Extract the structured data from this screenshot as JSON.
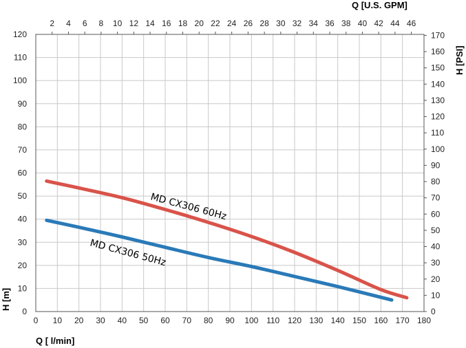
{
  "chart_data": {
    "type": "line",
    "axes": {
      "bottom": {
        "label": "Q [ l/min]",
        "min": 0,
        "max": 180,
        "step": 10
      },
      "left": {
        "label": "H [m]",
        "min": 0,
        "max": 120,
        "step": 10
      },
      "top": {
        "label": "Q [U.S. GPM]",
        "min": 0,
        "max": 47.55,
        "ticks": [
          2,
          4,
          6,
          8,
          10,
          12,
          14,
          16,
          18,
          20,
          22,
          24,
          26,
          28,
          30,
          32,
          34,
          36,
          38,
          40,
          42,
          44,
          46
        ]
      },
      "right": {
        "label": "H [PSI]",
        "min": 0,
        "max": 170.6,
        "ticks": [
          0,
          10,
          20,
          30,
          40,
          50,
          60,
          70,
          80,
          90,
          100,
          110,
          120,
          130,
          140,
          150,
          160,
          170
        ]
      }
    },
    "grid": "vertical and horizontal",
    "series": [
      {
        "name": "MD CX306 60Hz",
        "color": "#d9534a",
        "x": [
          5,
          20,
          40,
          60,
          80,
          100,
          120,
          140,
          160,
          172
        ],
        "y": [
          56.5,
          53.5,
          49.3,
          44.2,
          38.6,
          32.5,
          25.6,
          17.8,
          9.5,
          6
        ]
      },
      {
        "name": "MD CX306 50Hz",
        "color": "#2a7ab8",
        "x": [
          5,
          20,
          40,
          60,
          80,
          100,
          120,
          140,
          165
        ],
        "y": [
          39.5,
          36.5,
          32.3,
          27.8,
          23.4,
          19.5,
          15.2,
          10.8,
          5
        ]
      }
    ],
    "labels": [
      {
        "text": "MD CX306 60Hz",
        "series": 0
      },
      {
        "text": "MD CX306 50Hz",
        "series": 1
      }
    ]
  }
}
